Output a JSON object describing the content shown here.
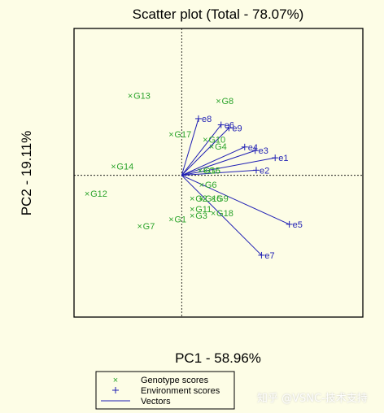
{
  "chart_data": {
    "type": "scatter",
    "title": "Scatter plot (Total - 78.07%)",
    "xlabel": "PC1 - 58.96%",
    "ylabel": "PC2 - 19.11%",
    "xlim": [
      -2.05,
      3.45
    ],
    "ylim": [
      -2.75,
      2.85
    ],
    "grid": false,
    "origin_lines": "dotted",
    "colors": {
      "genotype": "#2ca42c",
      "environment": "#1f1fb4",
      "vector": "#1f1fb4"
    },
    "genotype_scores": [
      {
        "label": "G13",
        "x": -0.98,
        "y": 1.55
      },
      {
        "label": "G8",
        "x": 0.7,
        "y": 1.45
      },
      {
        "label": "G17",
        "x": -0.2,
        "y": 0.8
      },
      {
        "label": "G10",
        "x": 0.45,
        "y": 0.7
      },
      {
        "label": "G4",
        "x": 0.57,
        "y": 0.56
      },
      {
        "label": "G14",
        "x": -1.3,
        "y": 0.18
      },
      {
        "label": "G16",
        "x": 0.35,
        "y": 0.1
      },
      {
        "label": "G5",
        "x": 0.45,
        "y": 0.1
      },
      {
        "label": "G6",
        "x": 0.38,
        "y": -0.18
      },
      {
        "label": "G12",
        "x": -1.8,
        "y": -0.35
      },
      {
        "label": "G2",
        "x": 0.2,
        "y": -0.45
      },
      {
        "label": "G9",
        "x": 0.6,
        "y": -0.45
      },
      {
        "label": "G15",
        "x": 0.38,
        "y": -0.45
      },
      {
        "label": "G11",
        "x": 0.2,
        "y": -0.65
      },
      {
        "label": "G3",
        "x": 0.2,
        "y": -0.78
      },
      {
        "label": "G18",
        "x": 0.6,
        "y": -0.73
      },
      {
        "label": "G1",
        "x": -0.2,
        "y": -0.85
      },
      {
        "label": "G7",
        "x": -0.8,
        "y": -0.98
      }
    ],
    "environment_scores": [
      {
        "label": "e8",
        "x": 0.32,
        "y": 1.1
      },
      {
        "label": "e6",
        "x": 0.75,
        "y": 0.98
      },
      {
        "label": "e9",
        "x": 0.9,
        "y": 0.92
      },
      {
        "label": "e4",
        "x": 1.2,
        "y": 0.55
      },
      {
        "label": "e3",
        "x": 1.4,
        "y": 0.48
      },
      {
        "label": "e1",
        "x": 1.78,
        "y": 0.34
      },
      {
        "label": "e2",
        "x": 1.42,
        "y": 0.1
      },
      {
        "label": "e5",
        "x": 2.05,
        "y": -0.95
      },
      {
        "label": "e7",
        "x": 1.52,
        "y": -1.55
      }
    ],
    "legend": {
      "placement": "bottom-center",
      "entries": [
        {
          "symbol": "×",
          "label": "Genotype scores",
          "color": "#2ca42c"
        },
        {
          "symbol": "+",
          "label": "Environment scores",
          "color": "#1f1fb4"
        },
        {
          "symbol": "line",
          "label": "Vectors",
          "color": "#1f1fb4"
        }
      ]
    }
  },
  "watermark": "知乎 @VSNC-技术支持"
}
